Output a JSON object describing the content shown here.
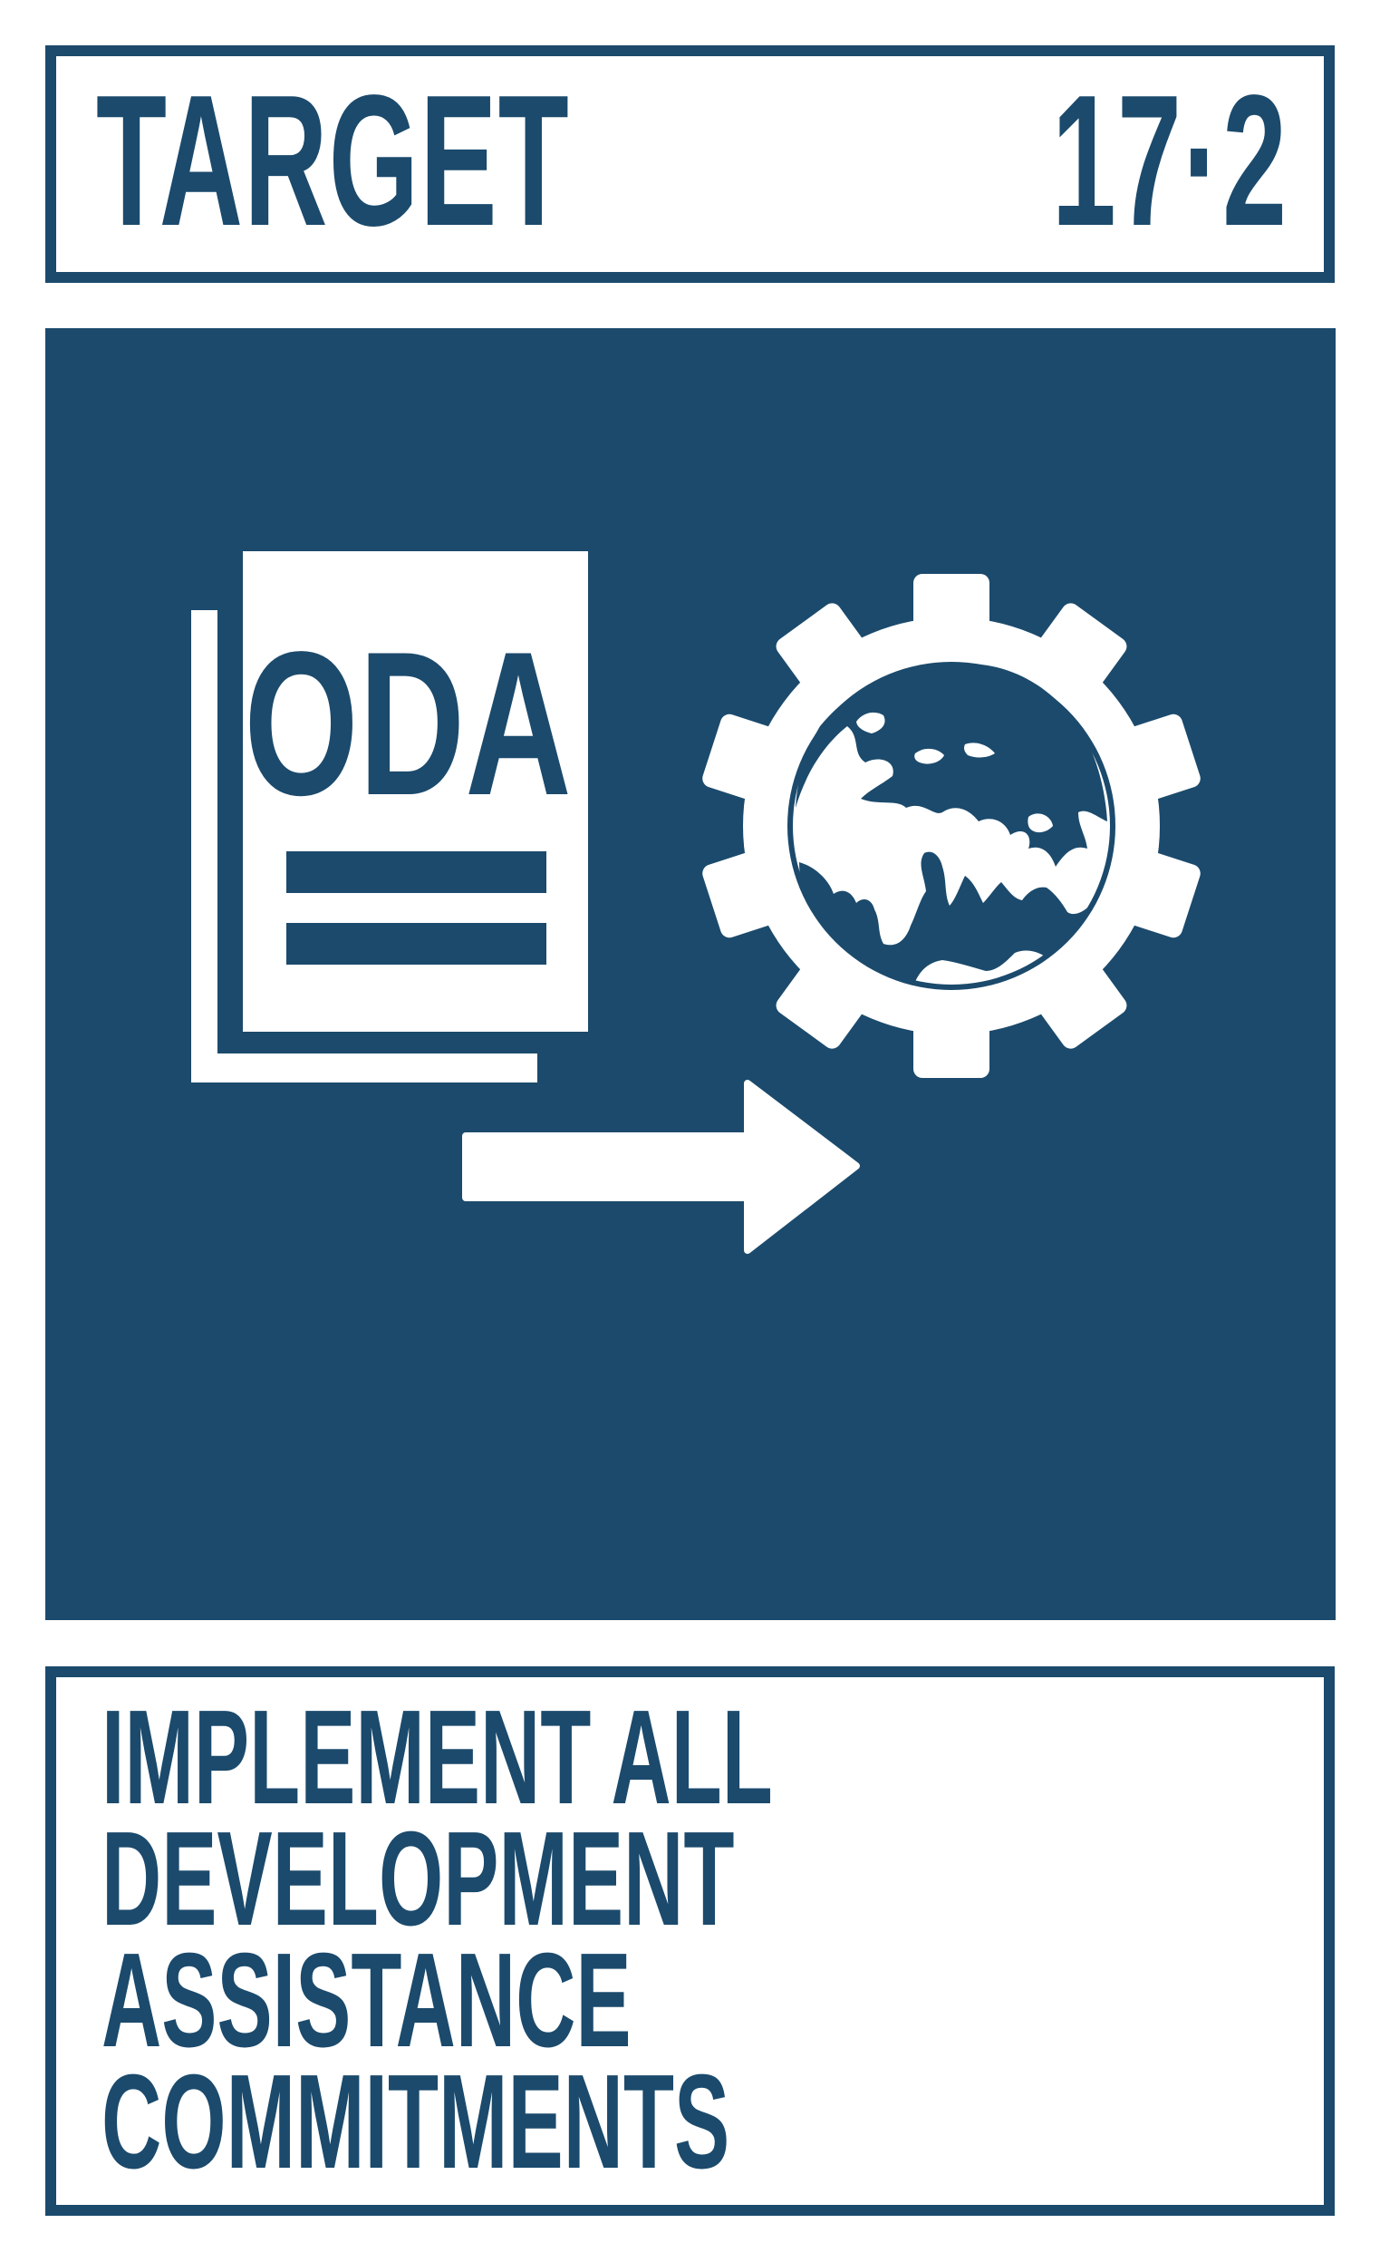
{
  "header": {
    "label": "TARGET",
    "number": "17·2"
  },
  "icon": {
    "document_label": "ODA",
    "document_icon": "oda-document-icon",
    "gear_icon": "gear-globe-icon",
    "arrow_icon": "right-arrow-icon"
  },
  "footer": {
    "lines": [
      "IMPLEMENT ALL",
      "DEVELOPMENT",
      "ASSISTANCE",
      "COMMITMENTS"
    ]
  },
  "colors": {
    "brand": "#1b4a6c",
    "background": "#ffffff",
    "icon_fill": "#ffffff"
  }
}
